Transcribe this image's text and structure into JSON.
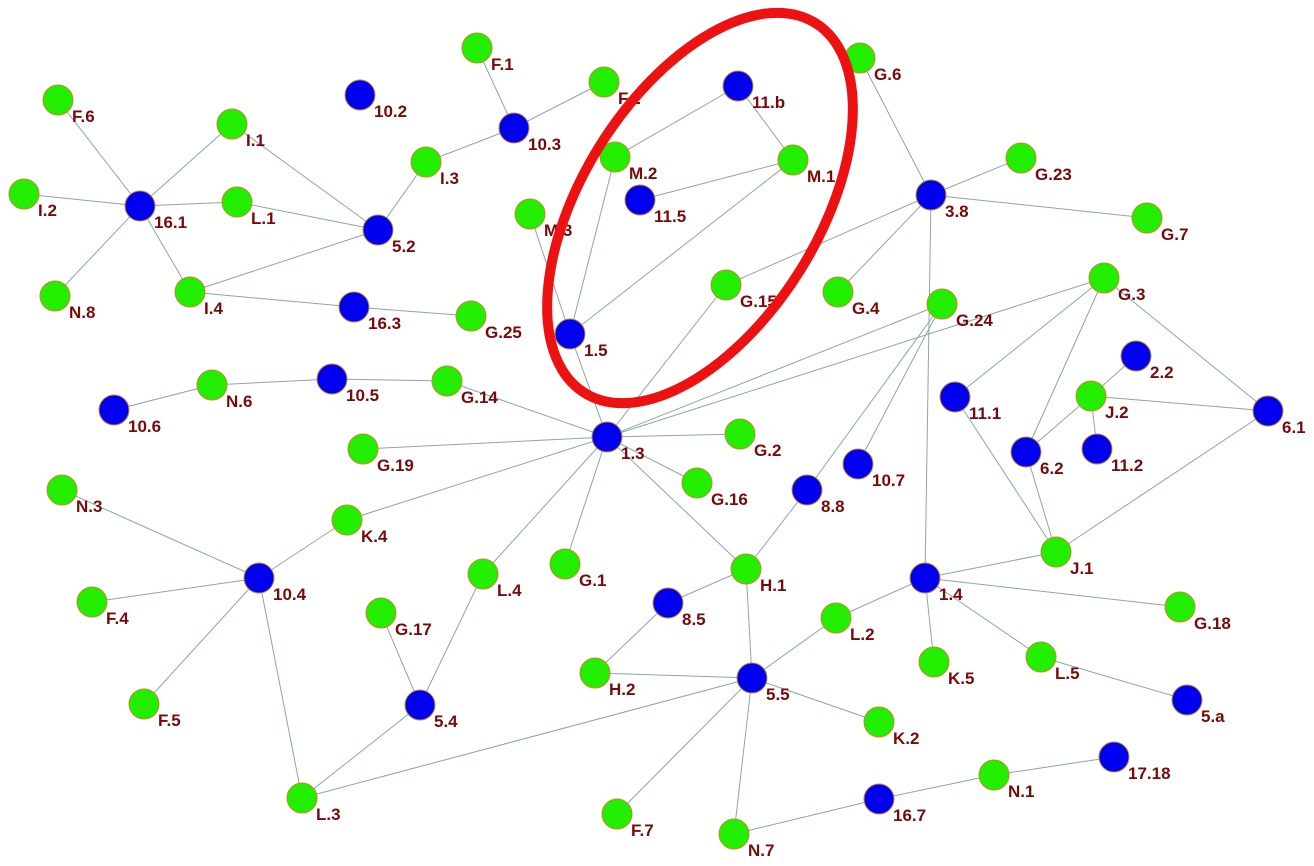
{
  "nodes": [
    {
      "label": "F.1",
      "color": "#22ee00"
    },
    {
      "label": "F.2",
      "color": "#22ee00"
    },
    {
      "label": "G.6",
      "color": "#22ee00"
    },
    {
      "label": "11.b",
      "color": "#0000ee"
    },
    {
      "label": "10.2",
      "color": "#0000ee"
    },
    {
      "label": "F.6",
      "color": "#22ee00"
    },
    {
      "label": "I.1",
      "color": "#22ee00"
    },
    {
      "label": "10.3",
      "color": "#0000ee"
    },
    {
      "label": "M.2",
      "color": "#22ee00"
    },
    {
      "label": "M.1",
      "color": "#22ee00"
    },
    {
      "label": "I.3",
      "color": "#22ee00"
    },
    {
      "label": "G.23",
      "color": "#22ee00"
    },
    {
      "label": "I.2",
      "color": "#22ee00"
    },
    {
      "label": "16.1",
      "color": "#0000ee"
    },
    {
      "label": "L.1",
      "color": "#22ee00"
    },
    {
      "label": "11.5",
      "color": "#0000ee"
    },
    {
      "label": "3.8",
      "color": "#0000ee"
    },
    {
      "label": "M.3",
      "color": "#22ee00"
    },
    {
      "label": "G.7",
      "color": "#22ee00"
    },
    {
      "label": "5.2",
      "color": "#0000ee"
    },
    {
      "label": "G.3",
      "color": "#22ee00"
    },
    {
      "label": "N.8",
      "color": "#22ee00"
    },
    {
      "label": "I.4",
      "color": "#22ee00"
    },
    {
      "label": "G.15",
      "color": "#22ee00"
    },
    {
      "label": "G.4",
      "color": "#22ee00"
    },
    {
      "label": "G.24",
      "color": "#22ee00"
    },
    {
      "label": "16.3",
      "color": "#0000ee"
    },
    {
      "label": "G.25",
      "color": "#22ee00"
    },
    {
      "label": "1.5",
      "color": "#0000ee"
    },
    {
      "label": "2.2",
      "color": "#0000ee"
    },
    {
      "label": "10.5",
      "color": "#0000ee"
    },
    {
      "label": "N.6",
      "color": "#22ee00"
    },
    {
      "label": "G.14",
      "color": "#22ee00"
    },
    {
      "label": "J.2",
      "color": "#22ee00"
    },
    {
      "label": "10.6",
      "color": "#0000ee"
    },
    {
      "label": "11.1",
      "color": "#0000ee"
    },
    {
      "label": "6.1",
      "color": "#0000ee"
    },
    {
      "label": "1.3",
      "color": "#0000ee"
    },
    {
      "label": "G.2",
      "color": "#22ee00"
    },
    {
      "label": "G.19",
      "color": "#22ee00"
    },
    {
      "label": "11.2",
      "color": "#0000ee"
    },
    {
      "label": "6.2",
      "color": "#0000ee"
    },
    {
      "label": "10.7",
      "color": "#0000ee"
    },
    {
      "label": "G.16",
      "color": "#22ee00"
    },
    {
      "label": "8.8",
      "color": "#0000ee"
    },
    {
      "label": "N.3",
      "color": "#22ee00"
    },
    {
      "label": "K.4",
      "color": "#22ee00"
    },
    {
      "label": "J.1",
      "color": "#22ee00"
    },
    {
      "label": "H.1",
      "color": "#22ee00"
    },
    {
      "label": "G.1",
      "color": "#22ee00"
    },
    {
      "label": "L.4",
      "color": "#22ee00"
    },
    {
      "label": "10.4",
      "color": "#0000ee"
    },
    {
      "label": "1.4",
      "color": "#0000ee"
    },
    {
      "label": "F.4",
      "color": "#22ee00"
    },
    {
      "label": "8.5",
      "color": "#0000ee"
    },
    {
      "label": "G.18",
      "color": "#22ee00"
    },
    {
      "label": "G.17",
      "color": "#22ee00"
    },
    {
      "label": "L.2",
      "color": "#22ee00"
    },
    {
      "label": "K.5",
      "color": "#22ee00"
    },
    {
      "label": "L.5",
      "color": "#22ee00"
    },
    {
      "label": "H.2",
      "color": "#22ee00"
    },
    {
      "label": "5.5",
      "color": "#0000ee"
    },
    {
      "label": "F.5",
      "color": "#22ee00"
    },
    {
      "label": "5.4",
      "color": "#0000ee"
    },
    {
      "label": "5.a",
      "color": "#0000ee"
    },
    {
      "label": "K.2",
      "color": "#22ee00"
    },
    {
      "label": "17.18",
      "color": "#0000ee"
    },
    {
      "label": "N.1",
      "color": "#22ee00"
    },
    {
      "label": "L.3",
      "color": "#22ee00"
    },
    {
      "label": "16.7",
      "color": "#0000ee"
    },
    {
      "label": "F.7",
      "color": "#22ee00"
    },
    {
      "label": "N.7",
      "color": "#22ee00"
    }
  ]
}
